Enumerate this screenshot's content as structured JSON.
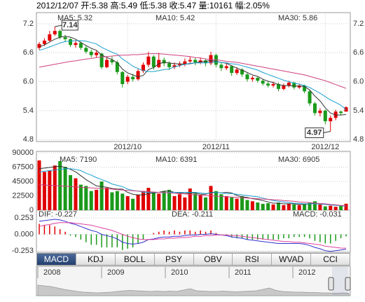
{
  "header": "2012/12/07 开:5.38 高:5.49 低:5.38 收:5.47 量:10161 幅:2.05%",
  "tabs": [
    "MACD",
    "KDJ",
    "BOLL",
    "PSY",
    "OBV",
    "RSI",
    "WVAD",
    "CCI"
  ],
  "chart_data": [
    {
      "type": "candlestick",
      "up_color": "#e00000",
      "down_color": "#1a9a1a",
      "grid": true,
      "categories": [
        null,
        null,
        null,
        null,
        null,
        null,
        null,
        null,
        null,
        null,
        null,
        null,
        null,
        null,
        null,
        null,
        null,
        "2012/10",
        null,
        null,
        null,
        null,
        null,
        null,
        null,
        null,
        null,
        null,
        null,
        null,
        null,
        null,
        null,
        null,
        "2012/11",
        null,
        null,
        null,
        null,
        null,
        null,
        null,
        null,
        null,
        null,
        null,
        null,
        null,
        null,
        null,
        null,
        null,
        null,
        null,
        null,
        "2012/12",
        null,
        null,
        null,
        null
      ],
      "open": [
        6.7,
        6.78,
        6.85,
        6.98,
        7.05,
        6.92,
        6.88,
        6.76,
        6.8,
        6.7,
        6.62,
        6.55,
        6.58,
        6.3,
        6.45,
        6.4,
        6.2,
        6.0,
        6.1,
        6.05,
        6.22,
        6.35,
        6.52,
        6.3,
        6.45,
        6.38,
        6.3,
        6.34,
        6.36,
        6.42,
        6.45,
        6.4,
        6.44,
        6.38,
        6.55,
        6.35,
        6.28,
        6.32,
        6.18,
        6.25,
        6.15,
        6.05,
        6.08,
        6.02,
        5.96,
        5.92,
        5.95,
        5.85,
        5.92,
        5.98,
        5.88,
        5.92,
        5.8,
        5.55,
        5.35,
        5.4,
        5.18,
        5.25,
        5.38,
        5.38
      ],
      "close": [
        6.78,
        6.85,
        6.98,
        7.05,
        6.92,
        6.88,
        6.76,
        6.8,
        6.7,
        6.62,
        6.55,
        6.6,
        6.3,
        6.45,
        6.4,
        6.2,
        5.95,
        6.1,
        6.05,
        6.22,
        6.35,
        6.52,
        6.3,
        6.45,
        6.38,
        6.3,
        6.34,
        6.36,
        6.42,
        6.45,
        6.4,
        6.44,
        6.38,
        6.55,
        6.35,
        6.28,
        6.32,
        6.18,
        6.25,
        6.15,
        6.05,
        6.08,
        6.02,
        5.96,
        5.92,
        5.95,
        5.85,
        5.92,
        5.98,
        5.88,
        5.92,
        5.8,
        5.55,
        5.35,
        5.4,
        5.18,
        5.25,
        5.38,
        5.35,
        5.47
      ],
      "high": [
        6.82,
        6.9,
        7.05,
        7.14,
        7.08,
        6.97,
        6.9,
        6.86,
        6.83,
        6.74,
        6.66,
        6.64,
        6.6,
        6.5,
        6.52,
        6.44,
        6.22,
        6.14,
        6.16,
        6.26,
        6.4,
        6.62,
        6.55,
        6.6,
        6.5,
        6.42,
        6.4,
        6.42,
        6.48,
        6.52,
        6.5,
        6.5,
        6.48,
        6.62,
        6.58,
        6.4,
        6.38,
        6.34,
        6.3,
        6.28,
        6.18,
        6.12,
        6.1,
        6.06,
        6.0,
        6.0,
        5.98,
        5.96,
        6.02,
        6.0,
        5.96,
        5.94,
        5.82,
        5.58,
        5.45,
        5.42,
        5.3,
        5.42,
        5.4,
        5.49
      ],
      "low": [
        6.66,
        6.74,
        6.82,
        6.95,
        6.88,
        6.82,
        6.72,
        6.7,
        6.66,
        6.58,
        6.5,
        6.5,
        6.26,
        6.28,
        6.35,
        6.15,
        5.88,
        5.95,
        6.0,
        6.02,
        6.18,
        6.3,
        6.25,
        6.28,
        6.32,
        6.24,
        6.26,
        6.3,
        6.32,
        6.38,
        6.34,
        6.36,
        6.32,
        6.34,
        6.3,
        6.22,
        6.24,
        6.12,
        6.14,
        6.1,
        6.0,
        6.0,
        5.98,
        5.92,
        5.88,
        5.88,
        5.8,
        5.82,
        5.88,
        5.84,
        5.85,
        5.76,
        5.5,
        5.3,
        5.28,
        5.12,
        4.97,
        5.2,
        5.3,
        5.38
      ],
      "series": [
        {
          "name": "MA5: 5.32",
          "color": "#333333",
          "values": [
            6.72,
            6.76,
            6.82,
            6.88,
            6.92,
            6.94,
            6.92,
            6.88,
            6.81,
            6.75,
            6.69,
            6.65,
            6.55,
            6.5,
            6.46,
            6.39,
            6.26,
            6.18,
            6.14,
            6.1,
            6.13,
            6.25,
            6.29,
            6.37,
            6.4,
            6.39,
            6.37,
            6.37,
            6.36,
            6.37,
            6.39,
            6.41,
            6.42,
            6.44,
            6.42,
            6.4,
            6.38,
            6.33,
            6.28,
            6.24,
            6.19,
            6.14,
            6.11,
            6.05,
            6.01,
            5.98,
            5.94,
            5.92,
            5.92,
            5.91,
            5.91,
            5.9,
            5.83,
            5.7,
            5.6,
            5.46,
            5.35,
            5.31,
            5.31,
            5.32
          ]
        },
        {
          "name": "MA10: 5.42",
          "color": "#1b9fcf",
          "values": [
            6.65,
            6.68,
            6.72,
            6.76,
            6.8,
            6.83,
            6.84,
            6.85,
            6.85,
            6.84,
            6.81,
            6.78,
            6.71,
            6.66,
            6.61,
            6.57,
            6.47,
            6.4,
            6.32,
            6.27,
            6.23,
            6.21,
            6.21,
            6.23,
            6.25,
            6.26,
            6.31,
            6.33,
            6.36,
            6.38,
            6.39,
            6.39,
            6.39,
            6.4,
            6.41,
            6.4,
            6.39,
            6.37,
            6.36,
            6.33,
            6.3,
            6.27,
            6.24,
            6.19,
            6.15,
            6.11,
            6.07,
            6.03,
            6.0,
            5.97,
            5.95,
            5.92,
            5.88,
            5.82,
            5.76,
            5.69,
            5.62,
            5.57,
            5.51,
            5.42
          ]
        },
        {
          "name": "MA30: 5.86",
          "color": "#d0407f",
          "values": [
            6.3,
            6.32,
            6.34,
            6.36,
            6.38,
            6.4,
            6.42,
            6.43,
            6.45,
            6.47,
            6.48,
            6.5,
            6.51,
            6.52,
            6.53,
            6.54,
            6.55,
            6.55,
            6.56,
            6.56,
            6.57,
            6.58,
            6.58,
            6.58,
            6.57,
            6.56,
            6.55,
            6.54,
            6.53,
            6.52,
            6.5,
            6.49,
            6.47,
            6.46,
            6.45,
            6.44,
            6.42,
            6.41,
            6.4,
            6.38,
            6.36,
            6.34,
            6.32,
            6.3,
            6.28,
            6.26,
            6.24,
            6.22,
            6.2,
            6.18,
            6.16,
            6.14,
            6.11,
            6.08,
            6.05,
            6.02,
            5.98,
            5.94,
            5.9,
            5.86
          ]
        }
      ],
      "ylim": [
        4.76,
        7.43
      ],
      "yticks": [
        7.2,
        6.6,
        {
          "value": 6,
          "label": "6.0"
        },
        5.4,
        4.8
      ]
    },
    {
      "type": "bar",
      "grid": true,
      "values": [
        78000,
        60000,
        62000,
        70000,
        77000,
        68000,
        55000,
        50000,
        40000,
        38000,
        30000,
        32000,
        45000,
        35000,
        28000,
        30000,
        26000,
        22000,
        18000,
        24000,
        30000,
        35000,
        28000,
        26000,
        30000,
        32000,
        22000,
        25000,
        20000,
        34000,
        26000,
        24000,
        20000,
        38000,
        30000,
        25000,
        22000,
        20000,
        18000,
        22000,
        16000,
        14000,
        12000,
        10000,
        11000,
        9000,
        12000,
        8000,
        10000,
        9000,
        8000,
        10000,
        12000,
        14000,
        9000,
        6000,
        7000,
        5490,
        7300,
        10161
      ],
      "series": [
        {
          "name": "MA5: 7190",
          "color": "#333333",
          "values": [
            65000,
            66000,
            67000,
            68000,
            69000,
            67000,
            64000,
            60000,
            54000,
            48000,
            43000,
            38000,
            37000,
            36000,
            34000,
            33000,
            33000,
            28000,
            25000,
            24000,
            24000,
            26000,
            27000,
            28000,
            30000,
            30000,
            28000,
            27000,
            26000,
            27000,
            27000,
            25000,
            25000,
            28000,
            28000,
            27000,
            28000,
            27000,
            23000,
            21000,
            20000,
            18000,
            17000,
            15000,
            13000,
            11000,
            11000,
            10000,
            10000,
            10000,
            9000,
            9000,
            10000,
            11000,
            10000,
            9000,
            8500,
            8000,
            7500,
            7190
          ]
        },
        {
          "name": "MA10: 6391",
          "color": "#1b9fcf",
          "values": [
            60000,
            61000,
            62000,
            63000,
            64000,
            65000,
            65000,
            64000,
            62000,
            58000,
            55000,
            51000,
            48000,
            45000,
            41000,
            39000,
            37000,
            33000,
            31000,
            30000,
            28000,
            28000,
            28000,
            28000,
            27000,
            28000,
            28000,
            28000,
            28000,
            28000,
            28000,
            27000,
            26000,
            27000,
            28000,
            27000,
            26000,
            26000,
            25000,
            24000,
            23000,
            22000,
            21000,
            19000,
            17000,
            15000,
            14000,
            13000,
            12000,
            11000,
            10500,
            10000,
            10000,
            10000,
            9500,
            9000,
            8200,
            7600,
            7000,
            6391
          ]
        },
        {
          "name": "MA30: 6905",
          "color": "#d0407f",
          "values": [
            40000,
            39500,
            39000,
            38500,
            38000,
            37500,
            37000,
            36500,
            36000,
            35500,
            35000,
            34500,
            34000,
            33500,
            33000,
            32000,
            31500,
            31000,
            30500,
            30000,
            29500,
            29000,
            28500,
            28000,
            27500,
            27000,
            26500,
            26000,
            25500,
            25000,
            24000,
            23500,
            23000,
            22500,
            22000,
            21500,
            21000,
            20500,
            20000,
            19500,
            19000,
            18500,
            18000,
            17500,
            17000,
            16500,
            16000,
            15000,
            14500,
            14000,
            13000,
            12500,
            12000,
            11000,
            10500,
            10000,
            9000,
            8500,
            7500,
            6905
          ]
        }
      ],
      "ylim": [
        0,
        92200
      ],
      "yticks": [
        90000,
        67500,
        45000,
        22500,
        0
      ]
    },
    {
      "type": "macd",
      "up_color": "#e00000",
      "down_color": "#1a9a1a",
      "name": "MACD: -0.031",
      "values": [
        0.16,
        0.14,
        0.14,
        0.12,
        0.08,
        0.04,
        -0.02,
        -0.04,
        -0.08,
        -0.12,
        -0.16,
        -0.16,
        -0.2,
        -0.2,
        -0.2,
        -0.2,
        -0.24,
        -0.22,
        -0.2,
        -0.14,
        -0.08,
        0.0,
        0.02,
        0.04,
        0.06,
        0.04,
        0.06,
        0.04,
        0.06,
        0.06,
        0.04,
        0.06,
        0.04,
        0.06,
        0.02,
        0.0,
        -0.02,
        -0.04,
        -0.06,
        -0.06,
        -0.08,
        -0.08,
        -0.08,
        -0.08,
        -0.08,
        -0.08,
        -0.08,
        -0.06,
        -0.06,
        -0.04,
        -0.04,
        -0.04,
        -0.06,
        -0.1,
        -0.12,
        -0.14,
        -0.14,
        -0.1,
        -0.06,
        -0.031
      ],
      "series": [
        {
          "name": "DIF: -0.227",
          "color": "#3333cc",
          "values": [
            0.2,
            0.21,
            0.22,
            0.23,
            0.22,
            0.2,
            0.17,
            0.15,
            0.12,
            0.09,
            0.06,
            0.04,
            0.0,
            -0.02,
            -0.04,
            -0.07,
            -0.12,
            -0.14,
            -0.15,
            -0.14,
            -0.12,
            -0.08,
            -0.07,
            -0.05,
            -0.04,
            -0.04,
            -0.03,
            -0.03,
            -0.02,
            -0.01,
            -0.01,
            0.0,
            0.0,
            0.01,
            0.0,
            -0.01,
            -0.02,
            -0.04,
            -0.05,
            -0.06,
            -0.08,
            -0.09,
            -0.1,
            -0.11,
            -0.12,
            -0.13,
            -0.14,
            -0.14,
            -0.14,
            -0.14,
            -0.14,
            -0.15,
            -0.17,
            -0.2,
            -0.22,
            -0.25,
            -0.26,
            -0.25,
            -0.24,
            -0.227
          ]
        },
        {
          "name": "DEA: -0.211",
          "color": "#e040a0",
          "values": [
            0.12,
            0.14,
            0.15,
            0.17,
            0.18,
            0.18,
            0.18,
            0.17,
            0.16,
            0.15,
            0.14,
            0.12,
            0.1,
            0.08,
            0.06,
            0.03,
            0.0,
            -0.03,
            -0.05,
            -0.07,
            -0.08,
            -0.08,
            -0.08,
            -0.07,
            -0.07,
            -0.06,
            -0.06,
            -0.05,
            -0.05,
            -0.04,
            -0.03,
            -0.03,
            -0.02,
            -0.02,
            -0.01,
            -0.01,
            -0.01,
            -0.02,
            -0.02,
            -0.03,
            -0.04,
            -0.05,
            -0.06,
            -0.07,
            -0.08,
            -0.09,
            -0.1,
            -0.11,
            -0.11,
            -0.12,
            -0.12,
            -0.13,
            -0.14,
            -0.15,
            -0.16,
            -0.18,
            -0.19,
            -0.2,
            -0.21,
            -0.211
          ]
        }
      ],
      "ylim": [
        -0.274,
        0.348
      ],
      "yticks": [
        0.253,
        {
          "value": 0,
          "label": "0.000"
        },
        -0.253
      ]
    },
    {
      "type": "area",
      "color": "#c8c8c8",
      "xlabels": [
        "2008",
        "2009",
        "2010",
        "2011",
        "2012"
      ],
      "values": [
        30,
        28,
        26,
        22,
        18,
        15,
        12,
        10,
        9,
        8,
        9,
        10,
        12,
        14,
        15,
        14,
        13,
        12,
        13,
        12,
        13,
        12,
        16,
        20,
        14,
        13,
        12,
        12,
        13,
        12,
        11,
        12,
        13,
        14,
        18,
        22,
        15,
        12,
        11,
        10,
        10,
        9,
        9,
        8,
        8,
        7,
        8,
        7
      ],
      "ylim": [
        0,
        60
      ]
    }
  ]
}
